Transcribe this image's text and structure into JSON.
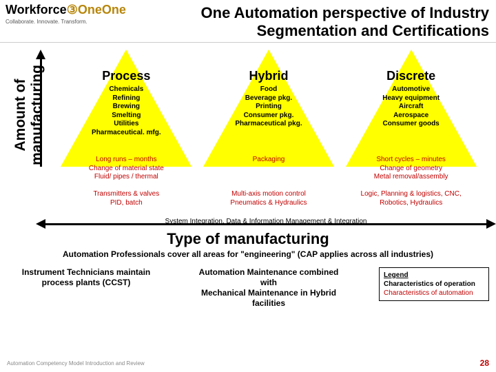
{
  "header": {
    "logo_main": "Workforce",
    "logo_accent": "One",
    "tagline": "Collaborate.  Innovate.  Transform.",
    "title": "One Automation perspective of Industry Segmentation and Certifications"
  },
  "yaxis_label": "Amount of manufacturing",
  "xaxis_label": "Type of manufacturing",
  "columns": [
    {
      "title": "Process",
      "items": "Chemicals\nRefining\nBrewing\nSmelting\nUtilities\nPharmaceutical. mfg.",
      "op": "Long runs – months\nChange of material state\nFluid/ pipes / thermal",
      "au": "Transmitters & valves\nPID, batch"
    },
    {
      "title": "Hybrid",
      "items": "Food\nBeverage pkg.\nPrinting\nConsumer pkg.\nPharmaceutical pkg.",
      "op": "Packaging",
      "au": "Multi-axis motion control\nPneumatics & Hydraulics"
    },
    {
      "title": "Discrete",
      "items": "Automotive\nHeavy equipment\nAircraft\nAerospace\nConsumer goods",
      "op": "Short cycles – minutes\nChange of geometry\nMetal removal/assembly",
      "au": "Logic, Planning & logistics, CNC,\nRobotics, Hydraulics"
    }
  ],
  "sys_int": "System Integration, Data & Information Management & Integration",
  "cap_line": "Automation Professionals cover all areas for \"engineering\" (CAP applies across all industries)",
  "bottom": {
    "left": "Instrument Technicians maintain process plants (CCST)",
    "mid": "Automation Maintenance combined with\nMechanical Maintenance in Hybrid facilities"
  },
  "legend": {
    "title": "Legend",
    "op": "Characteristics of operation",
    "au": "Characteristics of automation"
  },
  "footer": {
    "left": "Automation Competency Model Introduction and Review",
    "page": "28"
  },
  "colors": {
    "triangle": "#ffff00",
    "red": "#c00000"
  }
}
